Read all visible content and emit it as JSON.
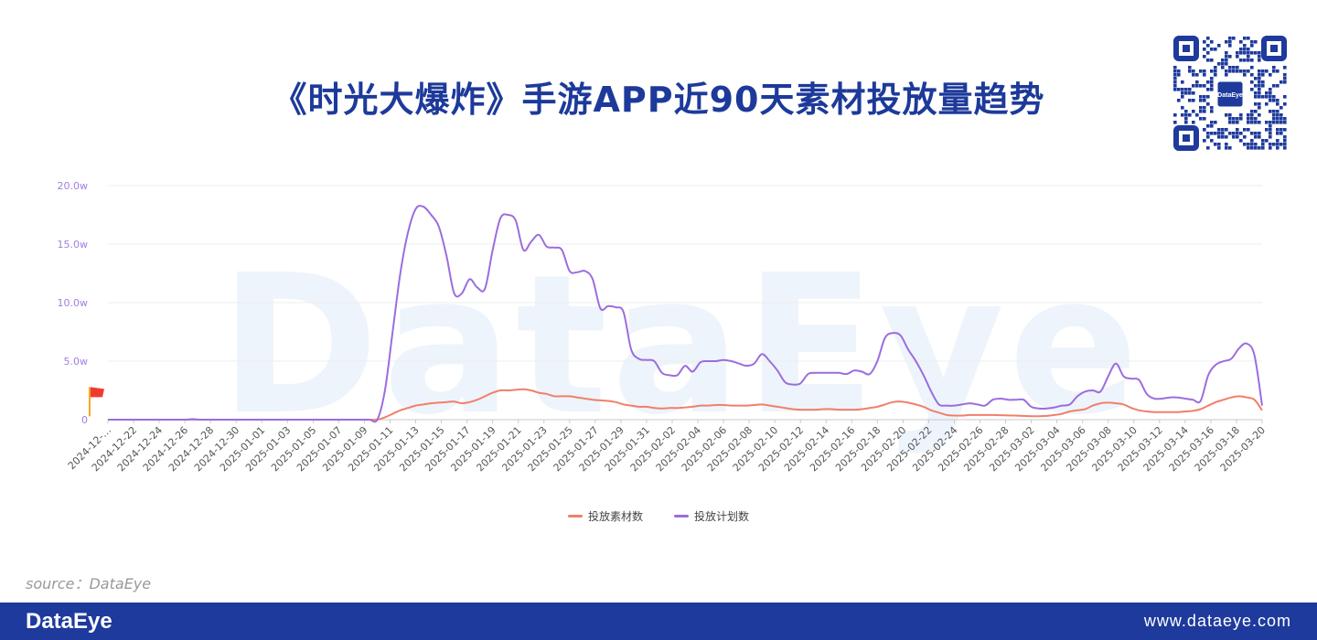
{
  "header": {
    "title": "《时光大爆炸》手游APP近90天素材投放量趋势"
  },
  "qr_badge": {
    "label": "DataEye"
  },
  "watermark": "DataEye",
  "source": "source：DataEye",
  "footer": {
    "logo": "DataEye",
    "url": "www.dataeye.com"
  },
  "colors": {
    "primary": "#1e3a9c",
    "material": "#f0806a",
    "plan": "#9b6ddf",
    "axis_text": "#a27ee0"
  },
  "chart_data": {
    "type": "line",
    "ylim": [
      0,
      200000
    ],
    "yticks": [
      {
        "value": 0,
        "label": "0"
      },
      {
        "value": 50000,
        "label": "5.0w"
      },
      {
        "value": 100000,
        "label": "10.0w"
      },
      {
        "value": 150000,
        "label": "15.0w"
      },
      {
        "value": 200000,
        "label": "20.0w"
      }
    ],
    "x_labels": [
      "2024-12-…",
      "2024-12-22",
      "2024-12-24",
      "2024-12-26",
      "2024-12-28",
      "2024-12-30",
      "2025-01-01",
      "2025-01-03",
      "2025-01-05",
      "2025-01-07",
      "2025-01-09",
      "2025-01-11",
      "2025-01-13",
      "2025-01-15",
      "2025-01-17",
      "2025-01-19",
      "2025-01-21",
      "2025-01-23",
      "2025-01-25",
      "2025-01-27",
      "2025-01-29",
      "2025-01-31",
      "2025-02-02",
      "2025-02-04",
      "2025-02-06",
      "2025-02-08",
      "2025-02-10",
      "2025-02-12",
      "2025-02-14",
      "2025-02-16",
      "2025-02-18",
      "2025-02-20",
      "2025-02-22",
      "2025-02-24",
      "2025-02-26",
      "2025-02-28",
      "2025-03-02",
      "2025-03-04",
      "2025-03-06",
      "2025-03-08",
      "2025-03-10",
      "2025-03-12",
      "2025-03-14",
      "2025-03-16",
      "2025-03-18",
      "2025-03-20"
    ],
    "grid": true,
    "legend_position": "bottom-center",
    "marker": {
      "label": "flag",
      "x": "2025-01-02",
      "value": 20000
    },
    "series": [
      {
        "name": "投放素材数",
        "color": "#f0806a",
        "values": [
          0,
          0,
          0,
          0,
          0,
          0,
          0,
          0,
          0,
          0,
          0,
          0,
          0,
          0,
          0,
          0,
          0,
          0,
          0,
          0,
          0,
          0,
          0,
          0,
          0,
          0,
          0,
          0,
          0,
          0,
          0,
          0,
          0,
          0,
          0,
          0,
          2000,
          5000,
          8000,
          10000,
          12000,
          13000,
          14000,
          14500,
          15000,
          15500,
          14000,
          15000,
          17000,
          20000,
          23000,
          25000,
          25000,
          25500,
          26000,
          25000,
          23000,
          22000,
          20000,
          20000,
          20000,
          19000,
          18000,
          17000,
          16500,
          16000,
          15000,
          13000,
          12000,
          11000,
          11000,
          10000,
          9500,
          10000,
          10000,
          10500,
          11000,
          12000,
          12000,
          12500,
          12500,
          12000,
          12000,
          12000,
          12500,
          13000,
          12000,
          11000,
          10000,
          9000,
          8500,
          8500,
          8500,
          9000,
          9000,
          8500,
          8500,
          8500,
          9000,
          10000,
          11000,
          13000,
          15000,
          15500,
          14500,
          13000,
          11000,
          8000,
          6000,
          4000,
          3500,
          3500,
          4000,
          4000,
          4000,
          4000,
          3800,
          3600,
          3500,
          3200,
          3000,
          3000,
          3200,
          4000,
          5000,
          7000,
          8000,
          9000,
          12000,
          14000,
          14500,
          14000,
          13000,
          10000,
          8000,
          7000,
          6500,
          6500,
          6500,
          6500,
          7000,
          7500,
          9000,
          12000,
          15000,
          17000,
          19000,
          20000,
          19000,
          17000,
          8000
        ]
      },
      {
        "name": "投放计划数",
        "color": "#9b6ddf",
        "values": [
          0,
          0,
          0,
          0,
          0,
          0,
          0,
          0,
          0,
          0,
          0,
          500,
          0,
          0,
          0,
          0,
          0,
          0,
          0,
          0,
          0,
          0,
          0,
          0,
          0,
          0,
          0,
          0,
          0,
          0,
          0,
          0,
          0,
          0,
          0,
          0,
          25000,
          75000,
          125000,
          160000,
          180000,
          182000,
          175000,
          165000,
          140000,
          108000,
          108000,
          120000,
          113000,
          112000,
          145000,
          172000,
          175000,
          170000,
          145000,
          152000,
          158000,
          148000,
          147000,
          145000,
          127000,
          126000,
          127000,
          120000,
          95000,
          97000,
          96000,
          92000,
          60000,
          52000,
          51000,
          50000,
          40000,
          38000,
          38000,
          46000,
          41000,
          49000,
          50000,
          50000,
          51000,
          50000,
          48000,
          46000,
          48000,
          56000,
          50000,
          42000,
          32000,
          30000,
          31000,
          39000,
          40000,
          40000,
          40000,
          40000,
          39000,
          42000,
          41000,
          39000,
          50000,
          70000,
          74000,
          72000,
          60000,
          50000,
          38000,
          24000,
          13000,
          12000,
          12000,
          13000,
          14000,
          13000,
          12000,
          17000,
          18000,
          17000,
          17000,
          17000,
          11000,
          9500,
          9500,
          10500,
          12000,
          13000,
          20000,
          24000,
          25000,
          24000,
          37000,
          48000,
          37000,
          35000,
          34000,
          22000,
          18000,
          18000,
          19000,
          19000,
          18000,
          17000,
          16000,
          38000,
          47000,
          50000,
          52000,
          61000,
          65000,
          55000,
          12000
        ]
      }
    ]
  }
}
